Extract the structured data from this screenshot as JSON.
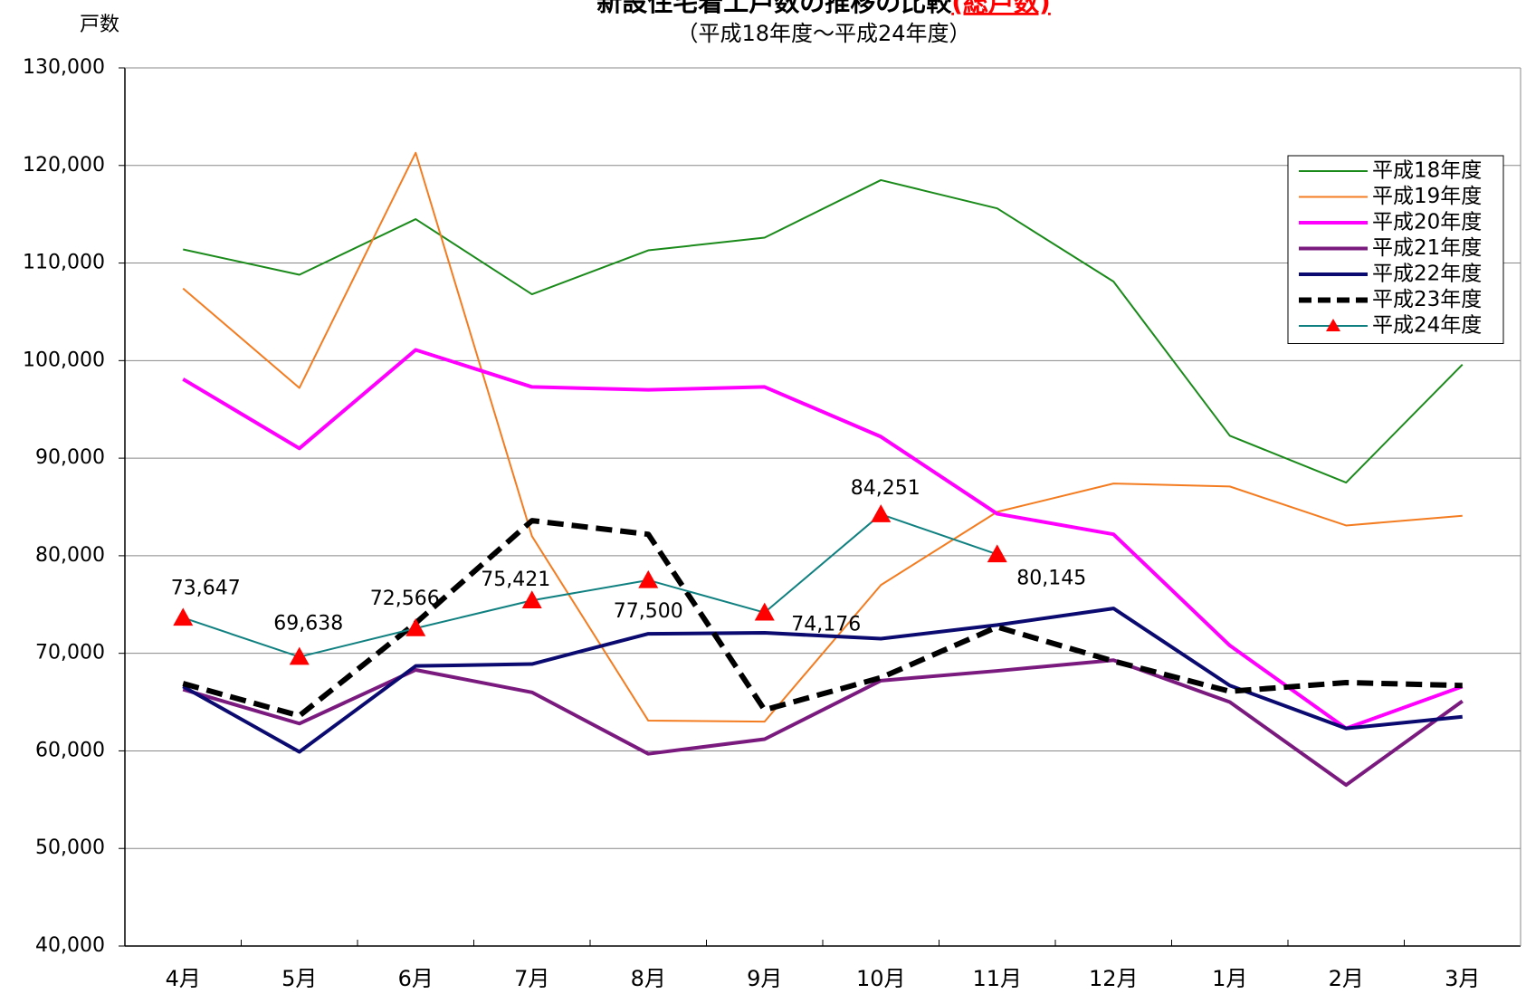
{
  "chart_data": {
    "type": "line",
    "title": "新設住宅着工戸数の推移の比較",
    "title_emphasis": "(総戸数)",
    "title_emphasis_color": "#ff0000",
    "subtitle": "（平成18年度～平成24年度）",
    "y_label": "戸数",
    "categories": [
      "4月",
      "5月",
      "6月",
      "7月",
      "8月",
      "9月",
      "10月",
      "11月",
      "12月",
      "1月",
      "2月",
      "3月"
    ],
    "ylim": [
      40000,
      130000
    ],
    "yticks": [
      {
        "value": 40000,
        "label": "40,000"
      },
      {
        "value": 50000,
        "label": "50,000"
      },
      {
        "value": 60000,
        "label": "60,000"
      },
      {
        "value": 70000,
        "label": "70,000"
      },
      {
        "value": 80000,
        "label": "80,000"
      },
      {
        "value": 90000,
        "label": "90,000"
      },
      {
        "value": 100000,
        "label": "100,000"
      },
      {
        "value": 110000,
        "label": "110,000"
      },
      {
        "value": 120000,
        "label": "120,000"
      },
      {
        "value": 130000,
        "label": "130,000"
      }
    ],
    "grid": true,
    "legend": "upper right",
    "series": [
      {
        "name": "平成18年度",
        "color": "#1a8a1a",
        "width": 2,
        "values": [
          111400,
          108800,
          114500,
          106800,
          111300,
          112600,
          118500,
          115600,
          108100,
          92300,
          87500,
          99600
        ]
      },
      {
        "name": "平成19年度",
        "color": "#f47c20",
        "width": 2,
        "values": [
          107400,
          97200,
          121300,
          82000,
          63100,
          63000,
          77000,
          84500,
          87400,
          87100,
          83100,
          84100
        ]
      },
      {
        "name": "平成20年度",
        "color": "#ff00ff",
        "width": 4,
        "values": [
          98100,
          91000,
          101100,
          97300,
          97000,
          97300,
          92200,
          84300,
          82200,
          70800,
          62300,
          66600
        ]
      },
      {
        "name": "平成21年度",
        "color": "#7a1a7f",
        "width": 4,
        "values": [
          66300,
          62800,
          68300,
          66000,
          59700,
          61200,
          67200,
          68200,
          69300,
          65000,
          56500,
          65100
        ]
      },
      {
        "name": "平成22年度",
        "color": "#0a0a70",
        "width": 4,
        "values": [
          66600,
          59900,
          68700,
          68900,
          72000,
          72100,
          71500,
          72900,
          74600,
          66700,
          62300,
          63500
        ]
      },
      {
        "name": "平成23年度",
        "color": "#000000",
        "width": 6,
        "dash": true,
        "values": [
          66900,
          63600,
          73100,
          83600,
          82200,
          64200,
          67500,
          72700,
          69200,
          66100,
          67000,
          66700
        ]
      },
      {
        "name": "平成24年度",
        "color": "#108080",
        "width": 2,
        "marker": "triangle",
        "marker_color": "#ff0000",
        "values": [
          73647,
          69638,
          72566,
          75421,
          77500,
          74176,
          84251,
          80145,
          null,
          null,
          null,
          null
        ],
        "value_labels": [
          "73,647",
          "69,638",
          "72,566",
          "75,421",
          "77,500",
          "74,176",
          "84,251",
          "80,145",
          null,
          null,
          null,
          null
        ]
      }
    ]
  }
}
